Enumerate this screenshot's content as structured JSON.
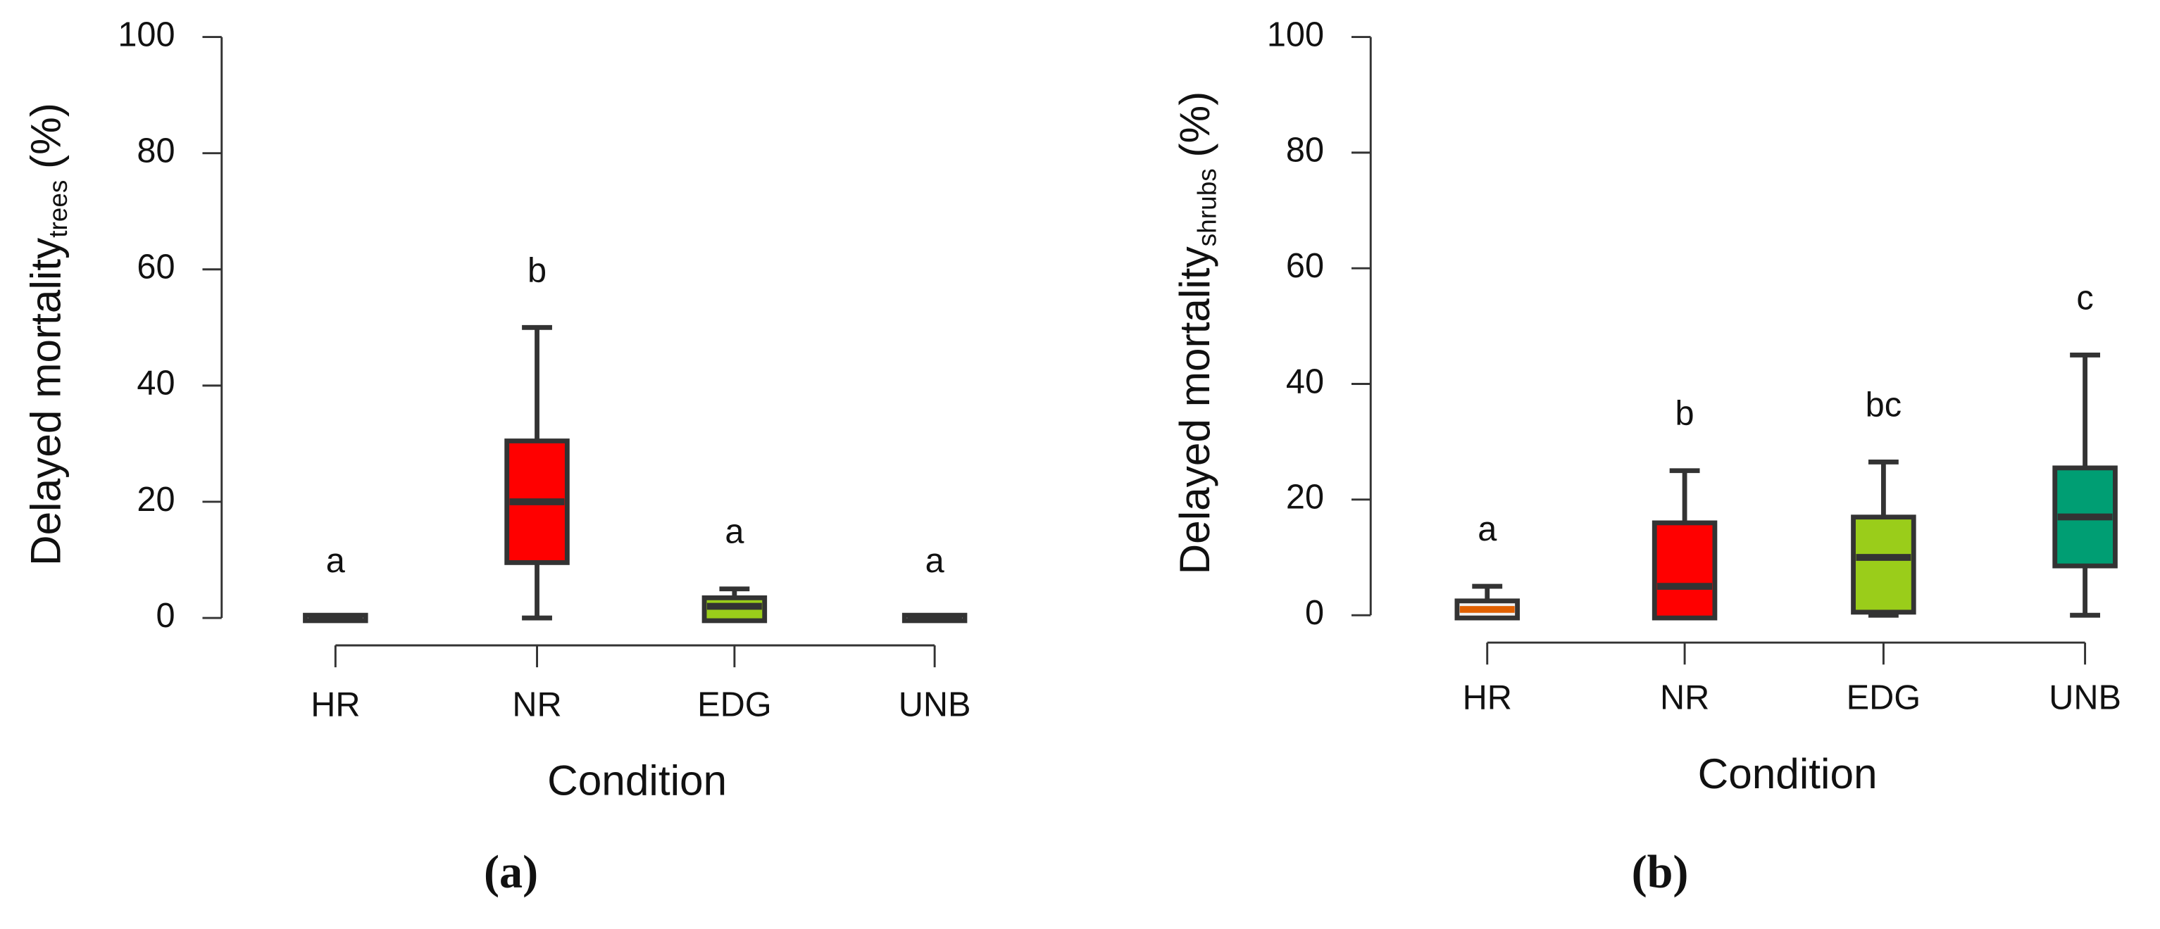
{
  "chart_data": [
    {
      "type": "box",
      "panel": "(a)",
      "ylabel": "Delayed mortality",
      "ylabel_sub": "trees",
      "ylabel_unit": "(%)",
      "xlabel": "Condition",
      "categories": [
        "HR",
        "NR",
        "EDG",
        "UNB"
      ],
      "colors": [
        "#f2f2f2",
        "#ff0000",
        "#9acd1a",
        "#f2f2f2"
      ],
      "median_colors": [
        "#333333",
        "#333333",
        "#333333",
        "#333333"
      ],
      "boxes": [
        {
          "min": 0,
          "q1": 0,
          "median": 0,
          "q3": 0,
          "max": 0
        },
        {
          "min": 0,
          "q1": 10,
          "median": 20,
          "q3": 30,
          "max": 50
        },
        {
          "min": 0,
          "q1": 0,
          "median": 2,
          "q3": 3,
          "max": 5
        },
        {
          "min": 0,
          "q1": 0,
          "median": 0,
          "q3": 0,
          "max": 0
        }
      ],
      "letters": [
        "a",
        "b",
        "a",
        "a"
      ],
      "ylim": [
        0,
        100
      ],
      "yticks": [
        0,
        20,
        40,
        60,
        80,
        100
      ]
    },
    {
      "type": "box",
      "panel": "(b)",
      "ylabel": "Delayed mortality",
      "ylabel_sub": "shrubs",
      "ylabel_unit": "(%)",
      "xlabel": "Condition",
      "categories": [
        "HR",
        "NR",
        "EDG",
        "UNB"
      ],
      "colors": [
        "#f2f2f2",
        "#ff0000",
        "#9acd1a",
        "#009e73"
      ],
      "median_colors": [
        "#e06000",
        "#333333",
        "#333333",
        "#333333"
      ],
      "boxes": [
        {
          "min": 0,
          "q1": 0,
          "median": 1,
          "q3": 2,
          "max": 5
        },
        {
          "min": 0,
          "q1": 0,
          "median": 5,
          "q3": 15.5,
          "max": 25
        },
        {
          "min": 0,
          "q1": 1,
          "median": 10,
          "q3": 16.5,
          "max": 26.5
        },
        {
          "min": 0,
          "q1": 9,
          "median": 17,
          "q3": 25,
          "max": 45
        }
      ],
      "letters": [
        "a",
        "b",
        "bc",
        "c"
      ],
      "ylim": [
        0,
        100
      ],
      "yticks": [
        0,
        20,
        40,
        60,
        80,
        100
      ]
    }
  ]
}
